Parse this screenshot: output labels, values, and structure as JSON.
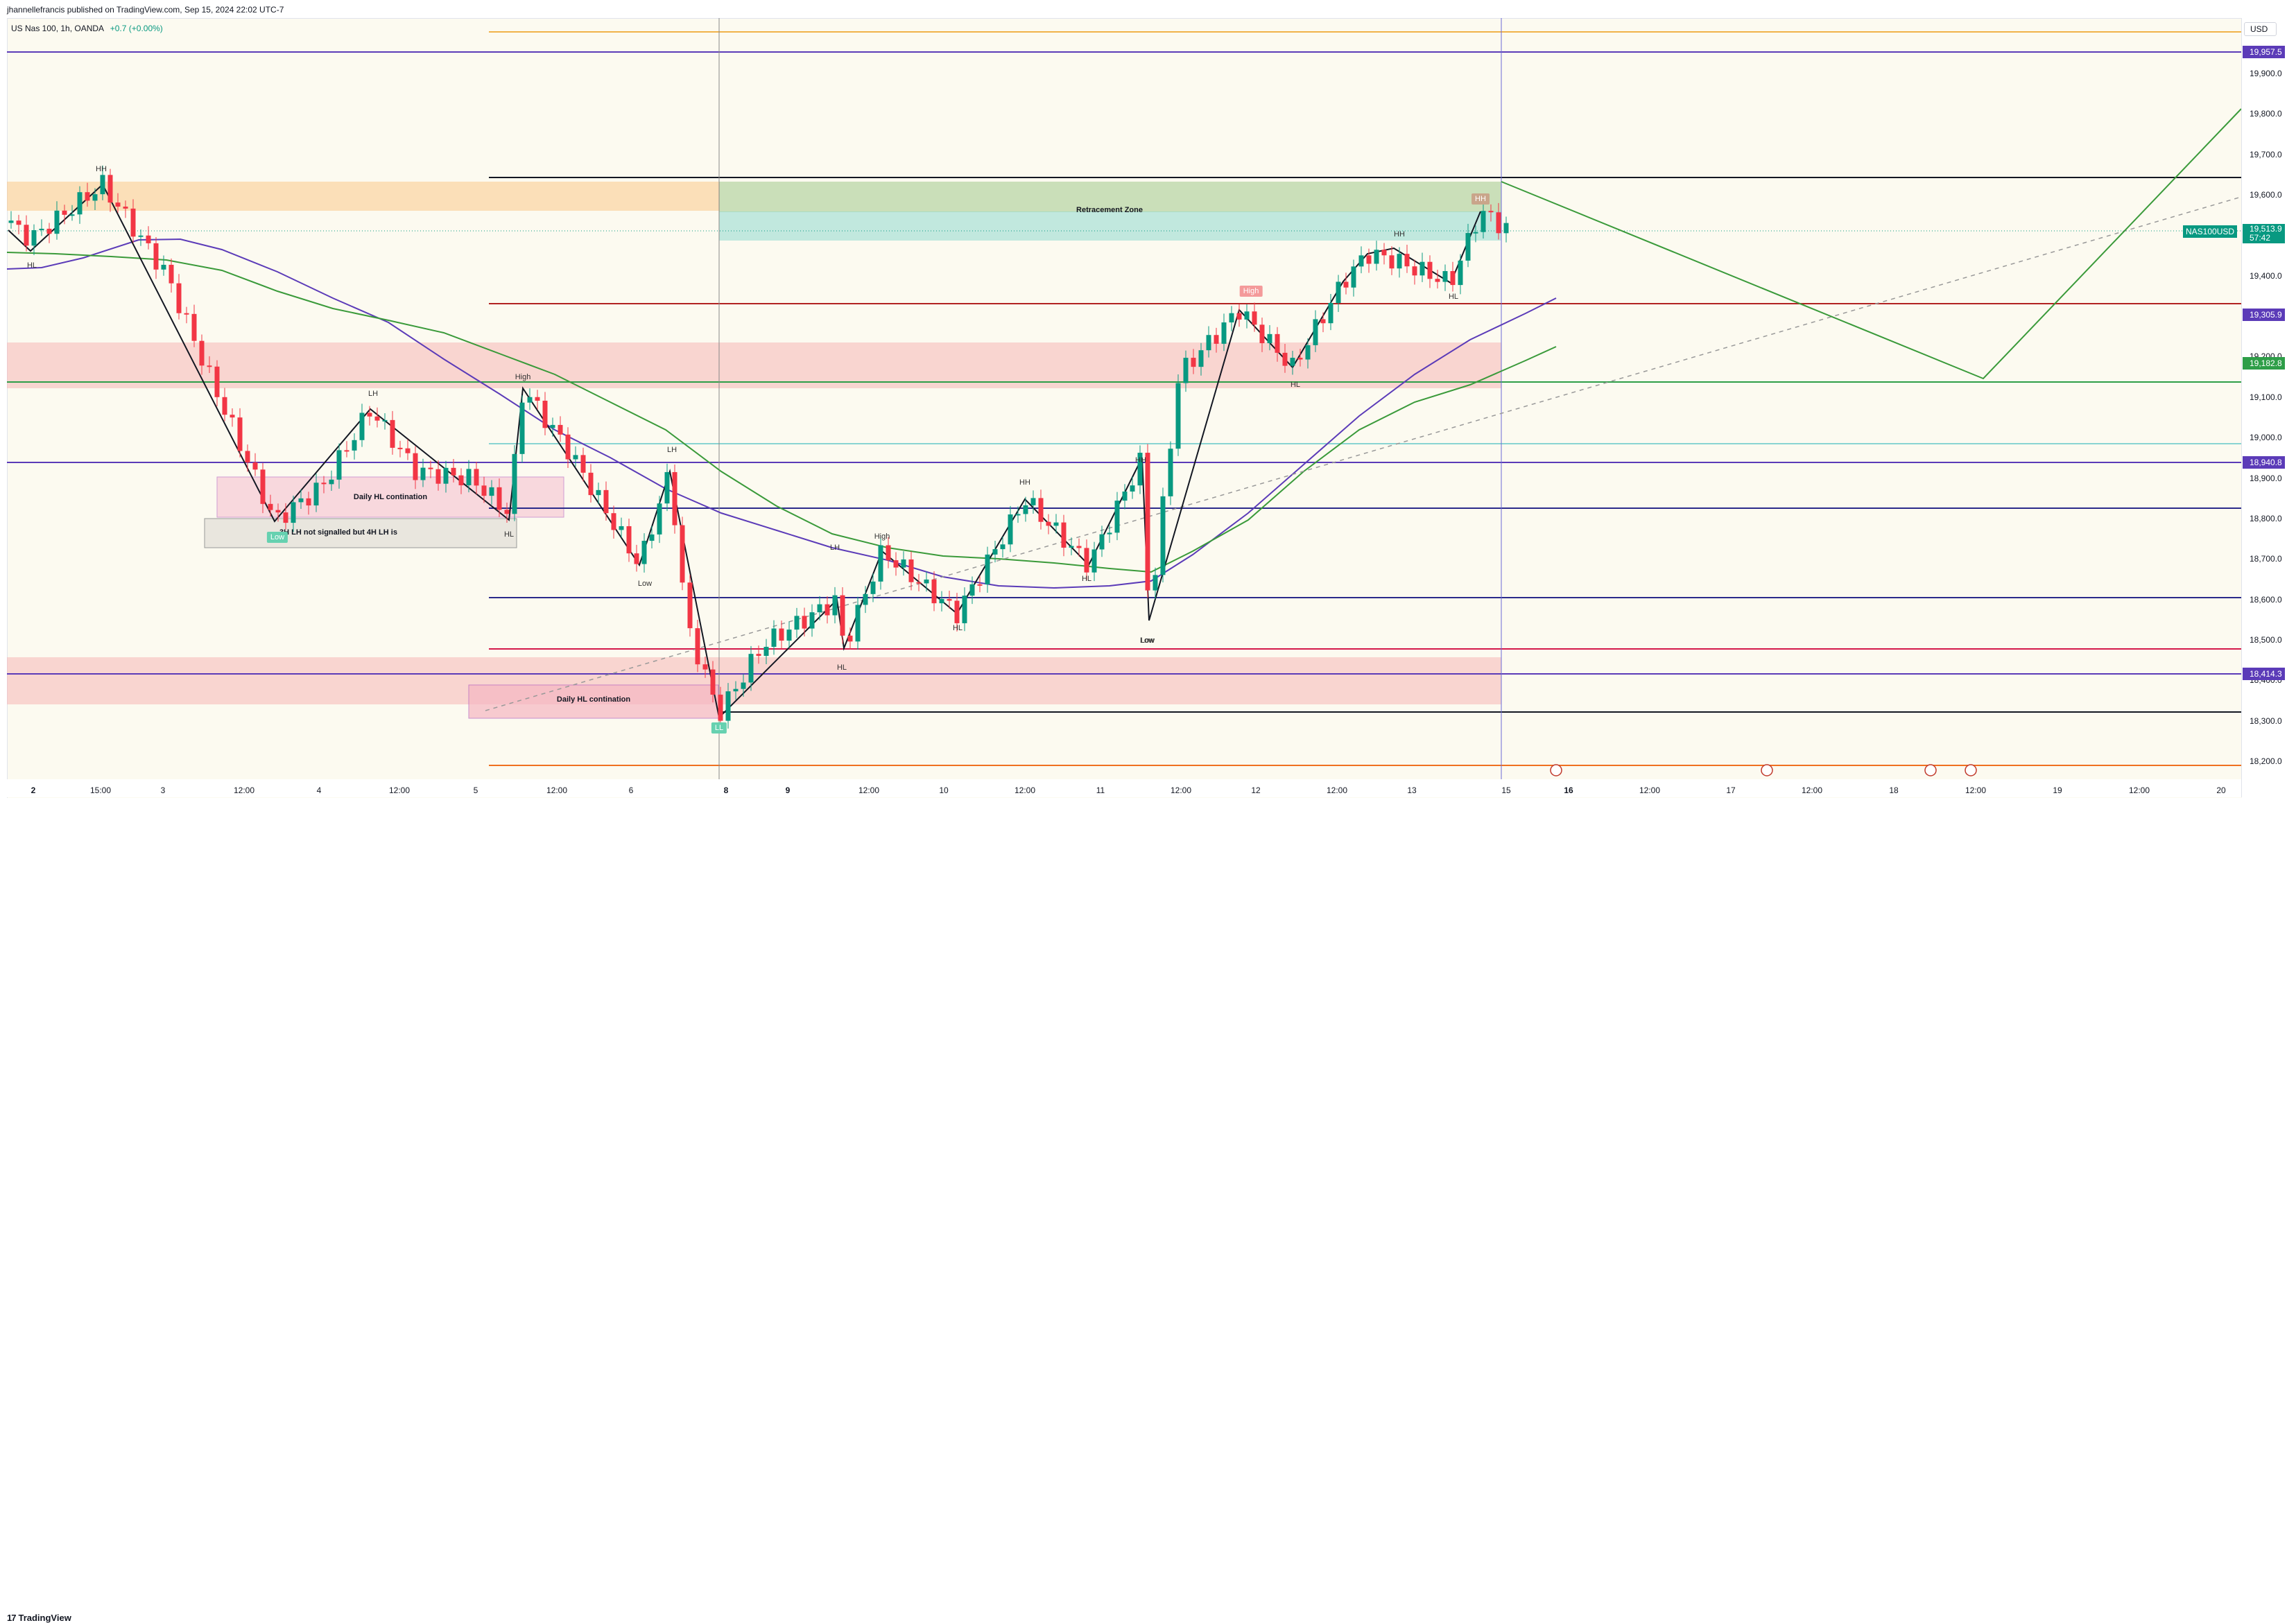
{
  "header": {
    "published": "jhannellefrancis published on TradingView.com, Sep 15, 2024 22:02 UTC-7"
  },
  "legend": {
    "symbol": "US Nas 100, 1h, OANDA",
    "change": "+0.7 (+0.00%)"
  },
  "price_axis": {
    "currency": "USD",
    "ticks": [
      "19,900.0",
      "19,800.0",
      "19,700.0",
      "19,600.0",
      "19,500.0",
      "19,400.0",
      "19,300.0",
      "19,200.0",
      "19,100.0",
      "19,000.0",
      "18,900.0",
      "18,800.0",
      "18,700.0",
      "18,600.0",
      "18,500.0",
      "18,400.0",
      "18,300.0",
      "18,200.0"
    ],
    "badges": [
      {
        "value": "19,957.5",
        "color": "purple"
      },
      {
        "value": "19,305.9",
        "color": "purple"
      },
      {
        "value": "19,182.8",
        "color": "green"
      },
      {
        "value": "18,940.8",
        "color": "purple"
      },
      {
        "value": "18,414.3",
        "color": "purple"
      }
    ],
    "last_price": {
      "name": "NAS100USD",
      "value": "19,513.9",
      "countdown": "57:42"
    }
  },
  "time_axis": {
    "labels": [
      {
        "text": "2",
        "bold": true
      },
      {
        "text": "15:00"
      },
      {
        "text": "3"
      },
      {
        "text": "12:00"
      },
      {
        "text": "4"
      },
      {
        "text": "12:00"
      },
      {
        "text": "5"
      },
      {
        "text": "12:00"
      },
      {
        "text": "6"
      },
      {
        "text": "8",
        "bold": true
      },
      {
        "text": "9",
        "bold": true
      },
      {
        "text": "12:00"
      },
      {
        "text": "10"
      },
      {
        "text": "12:00"
      },
      {
        "text": "11"
      },
      {
        "text": "12:00"
      },
      {
        "text": "12"
      },
      {
        "text": "12:00"
      },
      {
        "text": "13"
      },
      {
        "text": "15"
      },
      {
        "text": "16",
        "bold": true
      },
      {
        "text": "12:00"
      },
      {
        "text": "17"
      },
      {
        "text": "12:00"
      },
      {
        "text": "18"
      },
      {
        "text": "12:00"
      },
      {
        "text": "19"
      },
      {
        "text": "12:00"
      },
      {
        "text": "20"
      }
    ]
  },
  "annotations": {
    "zone_labels": [
      "Retracement Zone",
      "Daily HL contination",
      "Daily HL contination"
    ],
    "note": "3H LH not signalled but 4H LH is",
    "swing_labels": [
      "HH",
      "HL",
      "LH",
      "High",
      "LH",
      "Low",
      "HL",
      "Low",
      "LH",
      "HL",
      "High",
      "HL",
      "HH",
      "HL",
      "HH",
      "Low",
      "High",
      "HL",
      "HH",
      "HL"
    ],
    "tag_labels": [
      "Low",
      "LL",
      "HH"
    ]
  },
  "colors": {
    "bull": "#089981",
    "bear": "#f23645",
    "ma_purple": "#5b3bb8",
    "ma_green": "#3a9a3a",
    "zone_orange": "#f9c98a",
    "zone_red": "#f6b7b7",
    "zone_green": "#b7d3a3",
    "zone_teal": "#a5e0d8"
  },
  "footer": {
    "brand": "TradingView"
  }
}
